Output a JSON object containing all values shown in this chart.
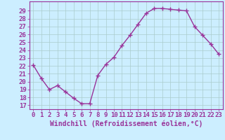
{
  "x": [
    0,
    1,
    2,
    3,
    4,
    5,
    6,
    7,
    8,
    9,
    10,
    11,
    12,
    13,
    14,
    15,
    16,
    17,
    18,
    19,
    20,
    21,
    22,
    23
  ],
  "y": [
    22.1,
    20.4,
    19.0,
    19.5,
    18.7,
    17.9,
    17.2,
    17.2,
    20.8,
    22.2,
    23.1,
    24.6,
    25.9,
    27.3,
    28.7,
    29.3,
    29.3,
    29.2,
    29.1,
    29.0,
    27.0,
    25.9,
    24.8,
    23.5
  ],
  "line_color": "#993399",
  "marker": "+",
  "marker_size": 4,
  "bg_color": "#cceeff",
  "grid_color": "#aacccc",
  "xlabel": "Windchill (Refroidissement éolien,°C)",
  "ylabel": "",
  "yticks": [
    17,
    18,
    19,
    20,
    21,
    22,
    23,
    24,
    25,
    26,
    27,
    28,
    29
  ],
  "ylim": [
    16.5,
    30.2
  ],
  "xlim": [
    -0.5,
    23.5
  ],
  "axis_color": "#993399",
  "xlabel_fontsize": 7,
  "tick_fontsize": 6.5,
  "line_width": 1.0
}
